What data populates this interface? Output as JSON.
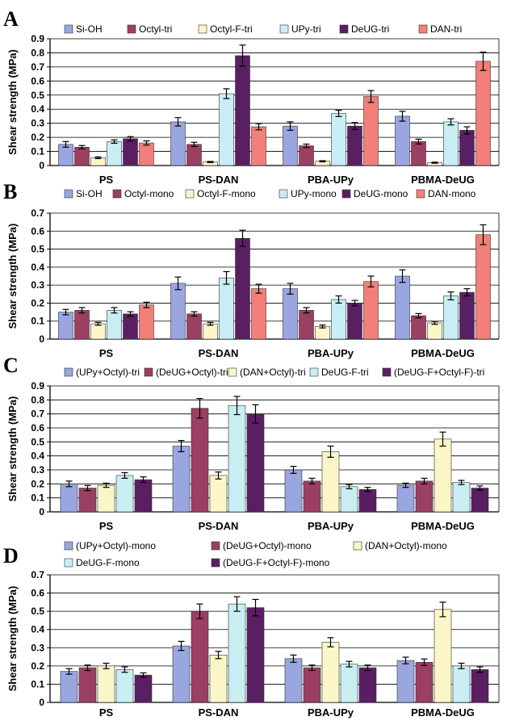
{
  "colors": {
    "Si-OH": "#9aa6e0",
    "Octyl": "#9b3f63",
    "Octyl-F": "#fbf6c8",
    "UPy": "#c8eef3",
    "DeUG": "#5a1f63",
    "DAN": "#f37f79",
    "UPyOctyl": "#9aa6e0",
    "DeUGOctyl": "#9b3f63",
    "DANOctyl": "#fbf6c8",
    "DeUGF": "#c8eef3",
    "DeUGFOctylF": "#5a1f63"
  },
  "chart_data": [
    {
      "panel": "A",
      "type": "bar",
      "ylabel": "Shear strength (MPa)",
      "ylim": [
        0,
        0.9
      ],
      "yticks": [
        "0",
        "0.1",
        "0.2",
        "0.3",
        "0.4",
        "0.5",
        "0.6",
        "0.7",
        "0.8",
        "0.9"
      ],
      "grid": true,
      "legend_position": "top",
      "categories": [
        "PS",
        "PS-DAN",
        "PBA-UPy",
        "PBMA-DeUG"
      ],
      "series": [
        {
          "name": "Si-OH",
          "color_key": "Si-OH",
          "values": [
            0.15,
            0.31,
            0.28,
            0.35
          ],
          "errors": [
            0.02,
            0.03,
            0.03,
            0.035
          ]
        },
        {
          "name": "Octyl-tri",
          "color_key": "Octyl",
          "values": [
            0.13,
            0.15,
            0.14,
            0.17
          ],
          "errors": [
            0.012,
            0.015,
            0.012,
            0.017
          ]
        },
        {
          "name": "Octyl-F-tri",
          "color_key": "Octyl-F",
          "values": [
            0.055,
            0.025,
            0.03,
            0.02
          ],
          "errors": [
            0.006,
            0.004,
            0.004,
            0.004
          ]
        },
        {
          "name": "UPy-tri",
          "color_key": "UPy",
          "values": [
            0.17,
            0.51,
            0.37,
            0.31
          ],
          "errors": [
            0.012,
            0.035,
            0.022,
            0.022
          ]
        },
        {
          "name": "DeUG-tri",
          "color_key": "DeUG",
          "values": [
            0.19,
            0.78,
            0.28,
            0.25
          ],
          "errors": [
            0.015,
            0.075,
            0.025,
            0.025
          ]
        },
        {
          "name": "DAN-tri",
          "color_key": "DAN",
          "values": [
            0.16,
            0.275,
            0.49,
            0.74
          ],
          "errors": [
            0.015,
            0.022,
            0.042,
            0.065
          ]
        }
      ]
    },
    {
      "panel": "B",
      "type": "bar",
      "ylabel": "Shear strength (MPa)",
      "ylim": [
        0,
        0.7
      ],
      "yticks": [
        "0",
        "0.1",
        "0.2",
        "0.3",
        "0.4",
        "0.5",
        "0.6",
        "0.7"
      ],
      "grid": true,
      "legend_position": "top",
      "categories": [
        "PS",
        "PS-DAN",
        "PBA-UPy",
        "PBMA-DeUG"
      ],
      "series": [
        {
          "name": "Si-OH",
          "color_key": "Si-OH",
          "values": [
            0.15,
            0.31,
            0.28,
            0.35
          ],
          "errors": [
            0.015,
            0.035,
            0.03,
            0.035
          ]
        },
        {
          "name": "Octyl-mono",
          "color_key": "Octyl",
          "values": [
            0.16,
            0.14,
            0.16,
            0.13
          ],
          "errors": [
            0.015,
            0.012,
            0.015,
            0.012
          ]
        },
        {
          "name": "Octyl-F-mono",
          "color_key": "Octyl-F",
          "values": [
            0.085,
            0.085,
            0.07,
            0.09
          ],
          "errors": [
            0.008,
            0.008,
            0.008,
            0.008
          ]
        },
        {
          "name": "UPy-mono",
          "color_key": "UPy",
          "values": [
            0.16,
            0.34,
            0.22,
            0.24
          ],
          "errors": [
            0.015,
            0.035,
            0.02,
            0.022
          ]
        },
        {
          "name": "DeUG-mono",
          "color_key": "DeUG",
          "values": [
            0.14,
            0.56,
            0.2,
            0.26
          ],
          "errors": [
            0.012,
            0.045,
            0.015,
            0.02
          ]
        },
        {
          "name": "DAN-mono",
          "color_key": "DAN",
          "values": [
            0.19,
            0.28,
            0.32,
            0.58
          ],
          "errors": [
            0.015,
            0.025,
            0.03,
            0.055
          ]
        }
      ]
    },
    {
      "panel": "C",
      "type": "bar",
      "ylabel": "Shear strength (MPa)",
      "ylim": [
        0,
        0.9
      ],
      "yticks": [
        "0",
        "0.1",
        "0.2",
        "0.3",
        "0.4",
        "0.5",
        "0.6",
        "0.7",
        "0.8",
        "0.9"
      ],
      "grid": true,
      "legend_position": "top",
      "categories": [
        "PS",
        "PS-DAN",
        "PBA-UPy",
        "PBMA-DeUG"
      ],
      "series": [
        {
          "name": "(UPy+Octyl)-tri",
          "color_key": "UPyOctyl",
          "values": [
            0.2,
            0.47,
            0.3,
            0.19
          ],
          "errors": [
            0.02,
            0.04,
            0.025,
            0.015
          ]
        },
        {
          "name": "(DeUG+Octyl)-tri",
          "color_key": "DeUGOctyl",
          "values": [
            0.17,
            0.74,
            0.22,
            0.22
          ],
          "errors": [
            0.018,
            0.07,
            0.02,
            0.02
          ]
        },
        {
          "name": "(DAN+Octyl)-tri",
          "color_key": "DANOctyl",
          "values": [
            0.19,
            0.26,
            0.43,
            0.52
          ],
          "errors": [
            0.015,
            0.025,
            0.04,
            0.05
          ]
        },
        {
          "name": "DeUG-F-tri",
          "color_key": "DeUGF",
          "values": [
            0.26,
            0.76,
            0.18,
            0.21
          ],
          "errors": [
            0.02,
            0.065,
            0.015,
            0.015
          ]
        },
        {
          "name": "(DeUG-F+Octyl-F)-tri",
          "color_key": "DeUGFOctylF",
          "values": [
            0.23,
            0.7,
            0.16,
            0.17
          ],
          "errors": [
            0.02,
            0.065,
            0.015,
            0.015
          ]
        }
      ]
    },
    {
      "panel": "D",
      "type": "bar",
      "ylabel": "Shear strength (MPa)",
      "ylim": [
        0,
        0.7
      ],
      "yticks": [
        "0",
        "0.1",
        "0.2",
        "0.3",
        "0.4",
        "0.5",
        "0.6",
        "0.7"
      ],
      "grid": true,
      "legend_position": "top",
      "categories": [
        "PS",
        "PS-DAN",
        "PBA-UPy",
        "PBMA-DeUG"
      ],
      "series": [
        {
          "name": "(UPy+Octyl)-mono",
          "color_key": "UPyOctyl",
          "values": [
            0.17,
            0.31,
            0.24,
            0.23
          ],
          "errors": [
            0.015,
            0.025,
            0.02,
            0.018
          ]
        },
        {
          "name": "(DeUG+Octyl)-mono",
          "color_key": "DeUGOctyl",
          "values": [
            0.19,
            0.5,
            0.19,
            0.22
          ],
          "errors": [
            0.015,
            0.04,
            0.015,
            0.018
          ]
        },
        {
          "name": "(DAN+Octyl)-mono",
          "color_key": "DANOctyl",
          "values": [
            0.2,
            0.26,
            0.33,
            0.51
          ],
          "errors": [
            0.015,
            0.02,
            0.025,
            0.04
          ]
        },
        {
          "name": "DeUG-F-mono",
          "color_key": "DeUGF",
          "values": [
            0.18,
            0.54,
            0.21,
            0.2
          ],
          "errors": [
            0.015,
            0.04,
            0.015,
            0.015
          ]
        },
        {
          "name": "(DeUG-F+Octyl-F)-mono",
          "color_key": "DeUGFOctylF",
          "values": [
            0.15,
            0.52,
            0.19,
            0.18
          ],
          "errors": [
            0.012,
            0.045,
            0.015,
            0.015
          ]
        }
      ]
    }
  ]
}
